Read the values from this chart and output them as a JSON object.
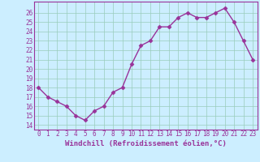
{
  "x": [
    0,
    1,
    2,
    3,
    4,
    5,
    6,
    7,
    8,
    9,
    10,
    11,
    12,
    13,
    14,
    15,
    16,
    17,
    18,
    19,
    20,
    21,
    22,
    23
  ],
  "y": [
    18,
    17,
    16.5,
    16,
    15,
    14.5,
    15.5,
    16,
    17.5,
    18,
    20.5,
    22.5,
    23,
    24.5,
    24.5,
    25.5,
    26,
    25.5,
    25.5,
    26,
    26.5,
    25,
    23,
    21
  ],
  "line_color": "#993399",
  "marker": "D",
  "marker_size": 2.5,
  "bg_color": "#cceeff",
  "grid_color": "#99ccbb",
  "xlabel": "Windchill (Refroidissement éolien,°C)",
  "xlabel_fontsize": 6.5,
  "ylabel_ticks": [
    14,
    15,
    16,
    17,
    18,
    19,
    20,
    21,
    22,
    23,
    24,
    25,
    26
  ],
  "xlim": [
    -0.5,
    23.5
  ],
  "ylim": [
    13.5,
    27.2
  ],
  "xtick_labels": [
    "0",
    "1",
    "2",
    "3",
    "4",
    "5",
    "6",
    "7",
    "8",
    "9",
    "10",
    "11",
    "12",
    "13",
    "14",
    "15",
    "16",
    "17",
    "18",
    "19",
    "20",
    "21",
    "22",
    "23"
  ],
  "tick_fontsize": 5.5,
  "spine_color": "#993399",
  "line_width": 1.0
}
